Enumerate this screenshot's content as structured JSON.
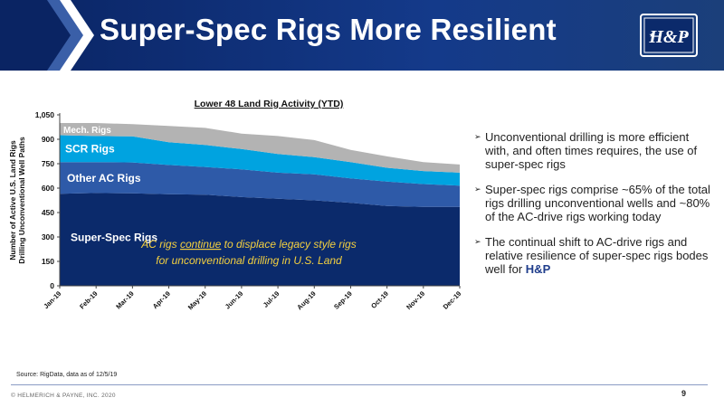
{
  "header": {
    "title": "Super-Spec Rigs More Resilient",
    "bg_color": "#0b2a6b",
    "logo_text": "H&P"
  },
  "chart_data": {
    "type": "area",
    "stacked": true,
    "title": "Lower 48 Land Rig Activity (YTD)",
    "ylabel": "Number of Active U.S. Land Rigs Drilling Unconventional Well Paths",
    "ylim": [
      0,
      1050
    ],
    "yticks": [
      0,
      150,
      300,
      450,
      600,
      750,
      900,
      1050
    ],
    "ytick_labels": [
      "0",
      "150",
      "300",
      "450",
      "600",
      "750",
      "900",
      "1,050"
    ],
    "categories": [
      "Jan-19",
      "Feb-19",
      "Mar-19",
      "Apr-19",
      "May-19",
      "Jun-19",
      "Jul-19",
      "Aug-19",
      "Sep-19",
      "Oct-19",
      "Nov-19",
      "Dec-19"
    ],
    "series": [
      {
        "name": "Super-Spec Rigs",
        "color": "#0b2a6b",
        "values": [
          565,
          570,
          568,
          562,
          560,
          545,
          535,
          525,
          510,
          490,
          485,
          485
        ]
      },
      {
        "name": "Other AC Rigs",
        "color": "#2e5aa8",
        "values": [
          195,
          190,
          190,
          180,
          170,
          170,
          160,
          160,
          150,
          150,
          140,
          130
        ]
      },
      {
        "name": "SCR Rigs",
        "color": "#00a3e0",
        "values": [
          165,
          160,
          160,
          140,
          135,
          125,
          115,
          105,
          100,
          85,
          80,
          80
        ]
      },
      {
        "name": "Mech. Rigs",
        "color": "#b3b3b3",
        "values": [
          75,
          80,
          75,
          100,
          105,
          95,
          110,
          105,
          75,
          70,
          55,
          50
        ]
      }
    ],
    "annotation": {
      "line1_pre": "AC rigs ",
      "line1_emph": "continue",
      "line1_post": " to displace legacy style rigs",
      "line2": "for unconventional drilling in U.S. Land",
      "color": "#f4d03f"
    }
  },
  "bullets": {
    "items": [
      {
        "text": "Unconventional drilling is more efficient with, and often times requires, the use of super-spec rigs"
      },
      {
        "text": "Super-spec rigs comprise ~65% of the total rigs drilling unconventional wells and ~80% of the AC-drive rigs working today"
      },
      {
        "text": "The continual shift to AC-drive rigs and relative resilience of super-spec rigs bodes well for ",
        "emph": "H&P"
      }
    ]
  },
  "source": "Source: RigData, data as of 12/5/19",
  "footer": {
    "copyright": "© HELMERICH & PAYNE, INC. 2020",
    "page_number": "9"
  }
}
